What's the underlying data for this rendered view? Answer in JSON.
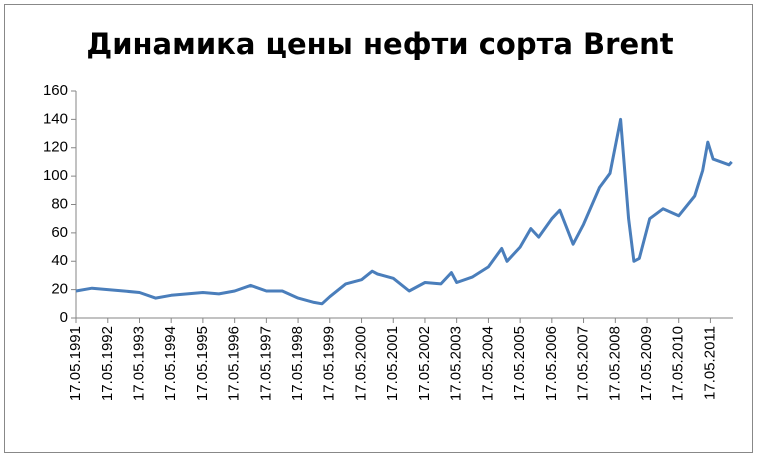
{
  "chart_data": {
    "type": "line",
    "title": "Динамика цены нефти сорта Brent",
    "x": [
      "17.05.1991",
      "17.11.1991",
      "17.05.1992",
      "17.11.1992",
      "17.05.1993",
      "17.11.1993",
      "17.05.1994",
      "17.11.1994",
      "17.05.1995",
      "17.11.1995",
      "17.05.1996",
      "17.11.1996",
      "17.05.1997",
      "17.11.1997",
      "17.05.1998",
      "17.11.1998",
      "17.02.1999",
      "17.05.1999",
      "17.11.1999",
      "17.05.2000",
      "17.09.2000",
      "17.11.2000",
      "17.05.2001",
      "17.11.2001",
      "17.05.2002",
      "17.11.2002",
      "17.03.2003",
      "17.05.2003",
      "17.11.2003",
      "17.05.2004",
      "17.10.2004",
      "17.12.2004",
      "17.05.2005",
      "17.09.2005",
      "17.12.2005",
      "17.05.2006",
      "17.08.2006",
      "17.01.2007",
      "17.05.2007",
      "17.11.2007",
      "17.03.2008",
      "17.07.2008",
      "17.10.2008",
      "17.12.2008",
      "17.02.2009",
      "17.06.2009",
      "17.11.2009",
      "17.05.2010",
      "17.11.2010",
      "17.02.2011",
      "17.04.2011",
      "17.06.2011",
      "17.09.2011",
      "17.12.2011",
      "17.01.2012"
    ],
    "series": [
      {
        "name": "Brent",
        "color": "#4a7ebb",
        "values": [
          19,
          21,
          20,
          19,
          18,
          14,
          16,
          17,
          18,
          17,
          19,
          23,
          19,
          19,
          14,
          11,
          10,
          15,
          24,
          27,
          33,
          31,
          28,
          19,
          25,
          24,
          32,
          25,
          29,
          36,
          49,
          40,
          50,
          63,
          57,
          70,
          76,
          52,
          66,
          92,
          102,
          140,
          70,
          40,
          42,
          70,
          77,
          72,
          86,
          104,
          124,
          112,
          110,
          108,
          110
        ]
      }
    ],
    "xlim": [
      "17.05.1991",
      "01.02.2012"
    ],
    "xticks": [
      "17.05.1991",
      "17.05.1992",
      "17.05.1993",
      "17.05.1994",
      "17.05.1995",
      "17.05.1996",
      "17.05.1997",
      "17.05.1998",
      "17.05.1999",
      "17.05.2000",
      "17.05.2001",
      "17.05.2002",
      "17.05.2003",
      "17.05.2004",
      "17.05.2005",
      "17.05.2006",
      "17.05.2007",
      "17.05.2008",
      "17.05.2009",
      "17.05.2010",
      "17.05.2011"
    ],
    "ylim": [
      0,
      160
    ],
    "yticks": [
      0,
      20,
      40,
      60,
      80,
      100,
      120,
      140,
      160
    ]
  }
}
